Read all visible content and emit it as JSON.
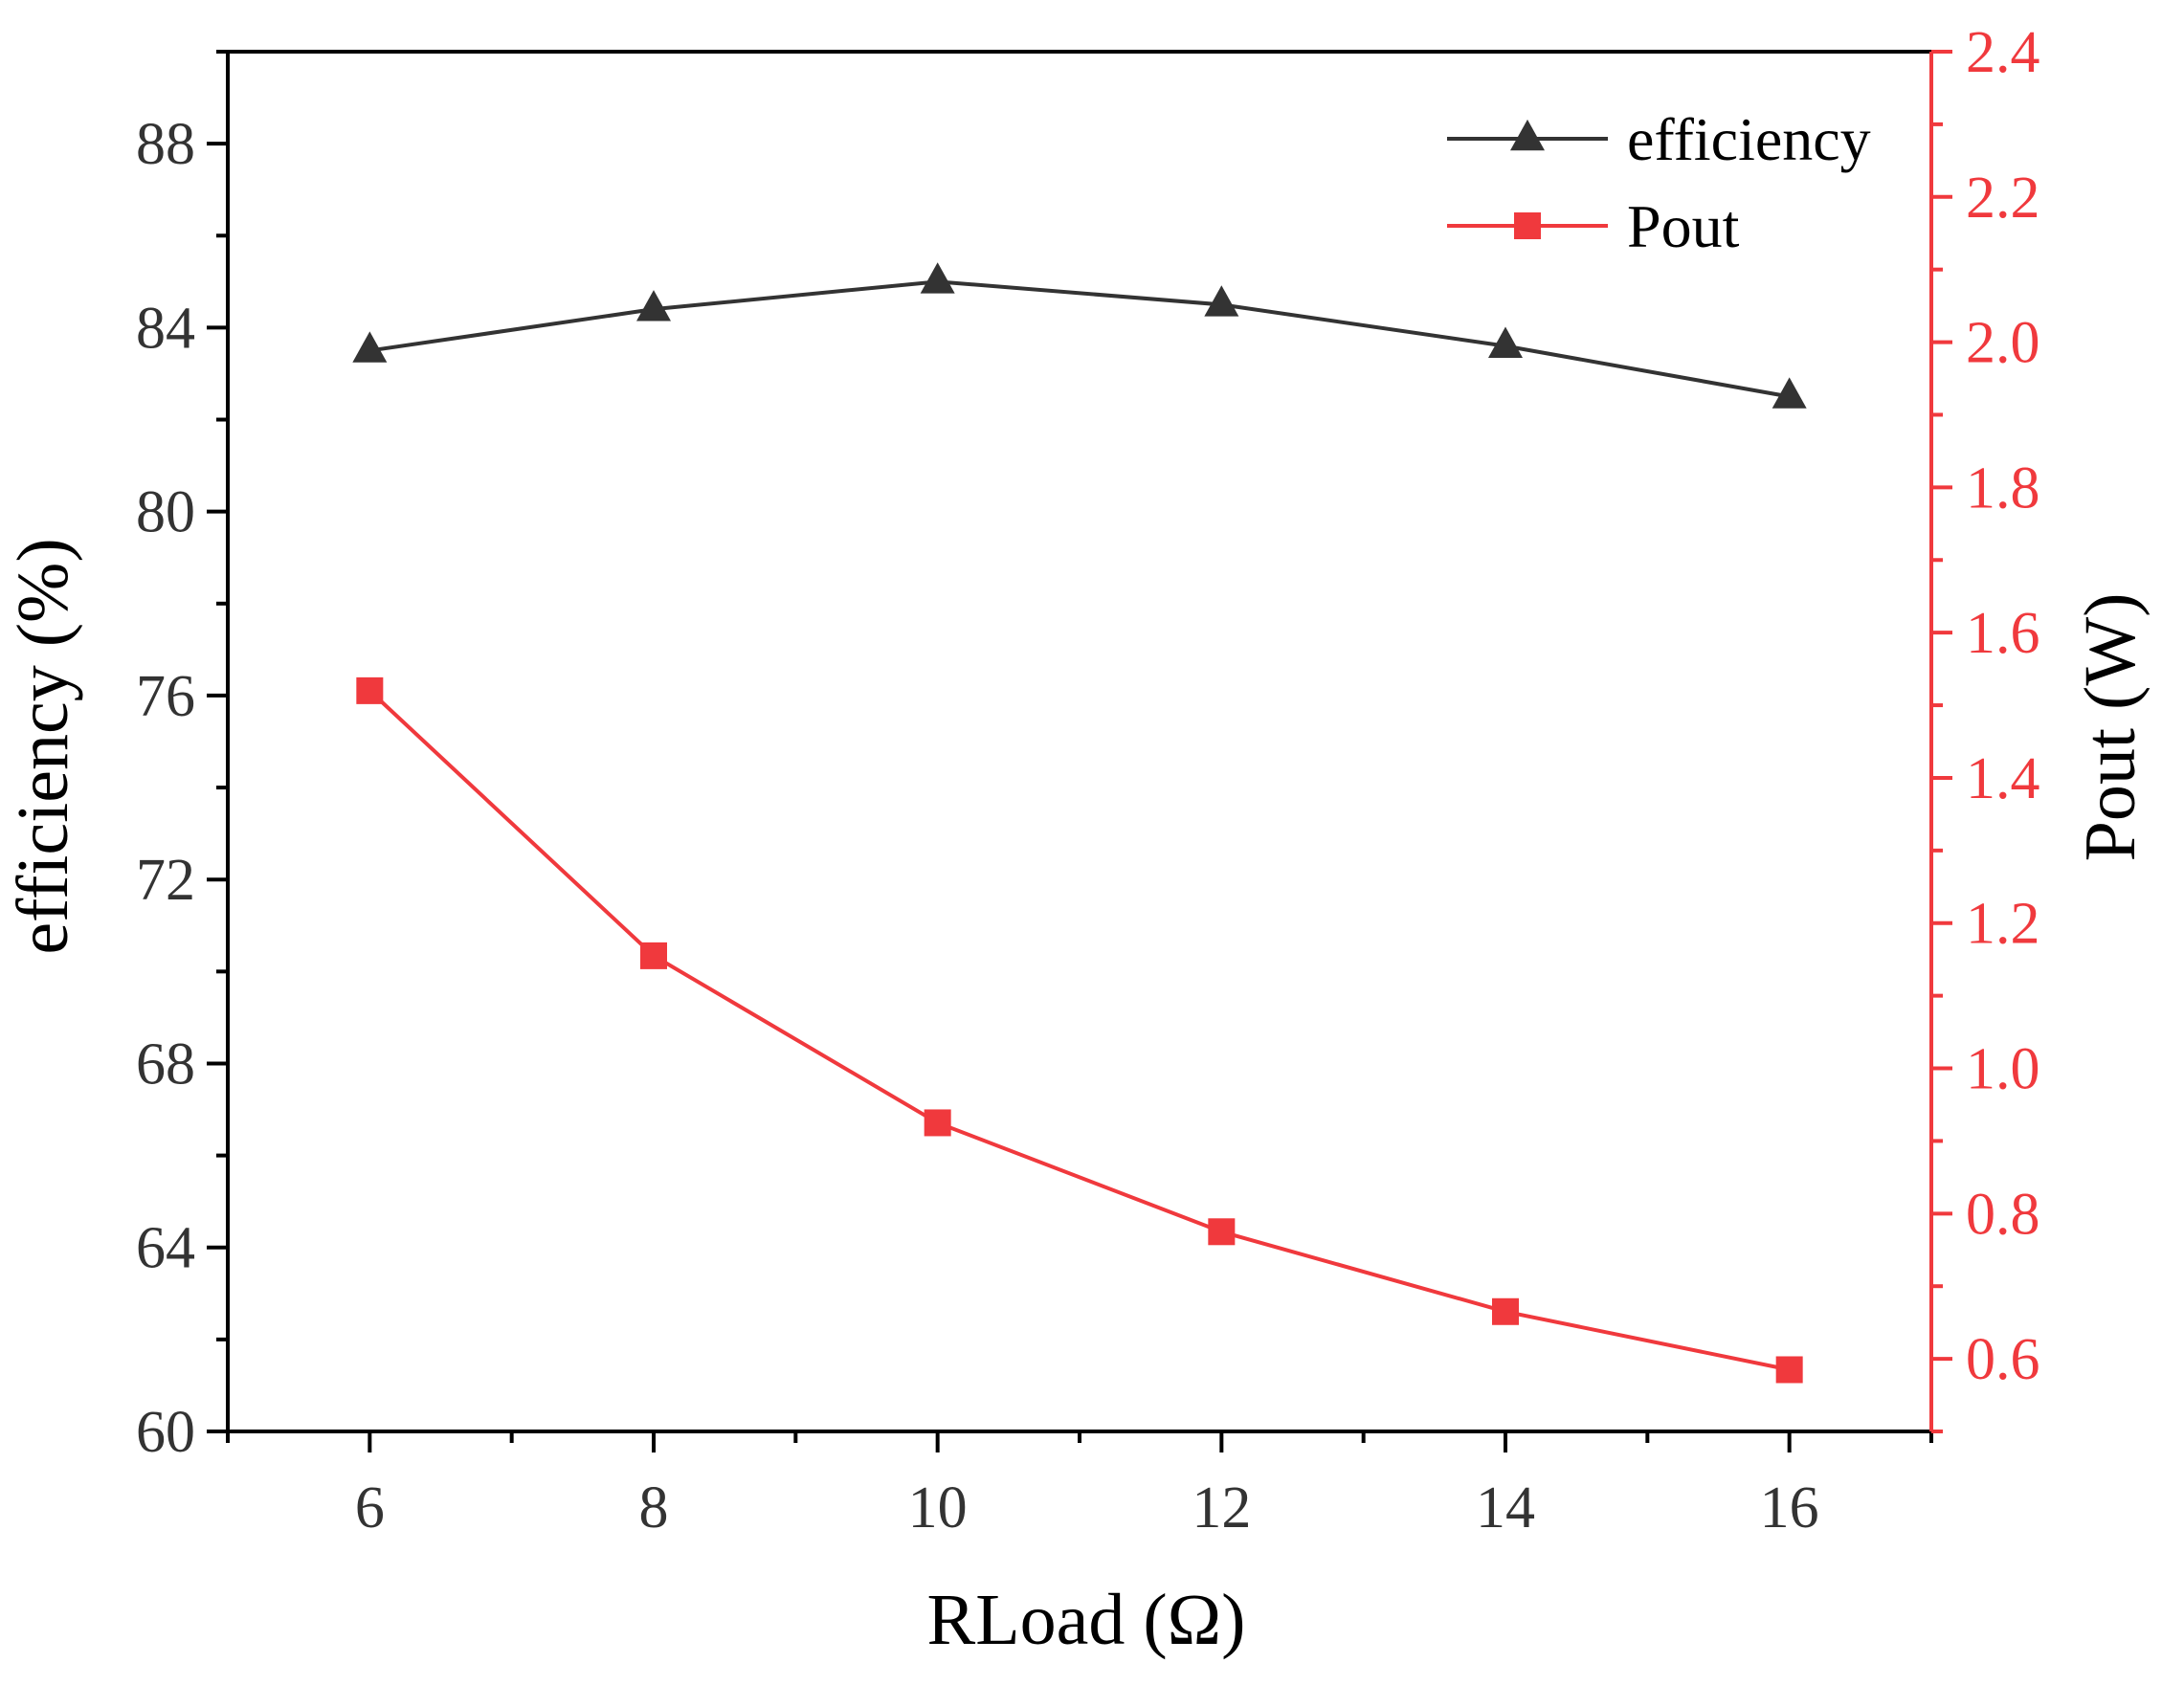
{
  "chart_data": {
    "type": "line",
    "title": "",
    "xlabel": "RLoad (Ω)",
    "ylabel_left": "efficiency (%)",
    "ylabel_right": "Pout (W)",
    "x": [
      6,
      8,
      10,
      12,
      14,
      16
    ],
    "xlim": [
      5,
      17
    ],
    "x_ticks": [
      6,
      8,
      10,
      12,
      14,
      16
    ],
    "ylim_left": [
      60,
      90
    ],
    "y_ticks_left": [
      60,
      64,
      68,
      72,
      76,
      80,
      84,
      88
    ],
    "ylim_right": [
      0.5,
      2.4
    ],
    "y_ticks_right": [
      0.6,
      0.8,
      1.0,
      1.2,
      1.4,
      1.6,
      1.8,
      2.0,
      2.2,
      2.4
    ],
    "grid": false,
    "legend_position": "top-right",
    "series": [
      {
        "name": "efficiency",
        "axis": "left",
        "marker": "triangle",
        "color": "#333333",
        "values": [
          83.5,
          84.4,
          85.0,
          84.5,
          83.6,
          82.5
        ]
      },
      {
        "name": "Pout",
        "axis": "right",
        "marker": "square",
        "color": "#f0393d",
        "values": [
          1.52,
          1.155,
          0.925,
          0.775,
          0.665,
          0.585
        ]
      }
    ],
    "colors": {
      "axis": "#000000",
      "left_tick_text": "#333333",
      "right_axis": "#f0393d"
    }
  }
}
